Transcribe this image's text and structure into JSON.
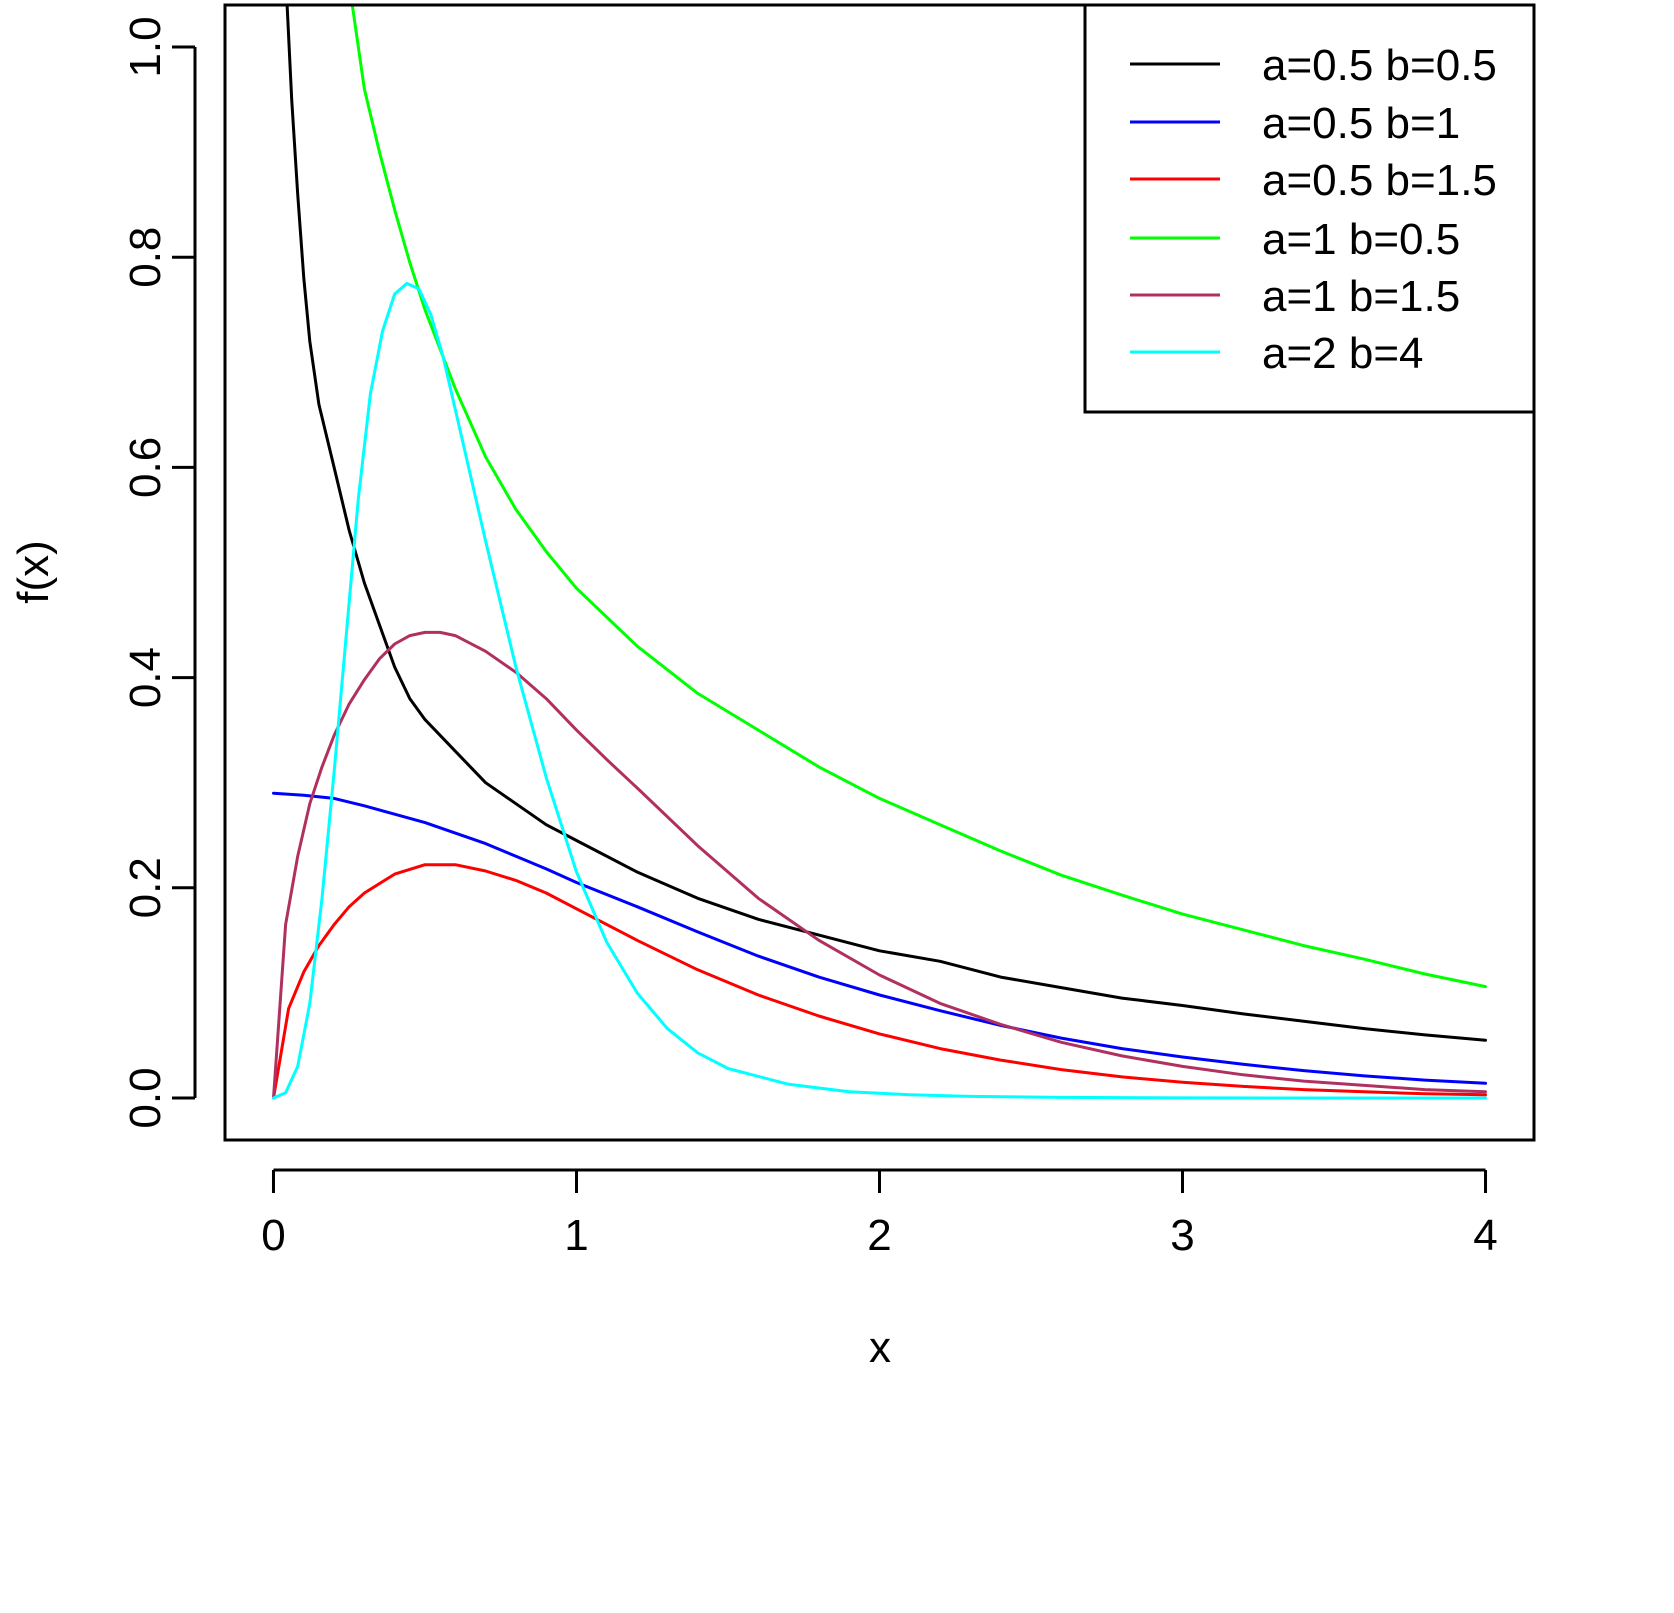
{
  "chart_data": {
    "type": "line",
    "title": "",
    "xlabel": "x",
    "ylabel": "f(x)",
    "xlim": [
      -0.16,
      4.16
    ],
    "ylim": [
      -0.04,
      1.04
    ],
    "xticks": [
      0,
      1,
      2,
      3,
      4
    ],
    "xtick_labels": [
      "0",
      "1",
      "2",
      "3",
      "4"
    ],
    "yticks": [
      0,
      0.2,
      0.4,
      0.6,
      0.8,
      1.0
    ],
    "ytick_labels": [
      "0.0",
      "0.2",
      "0.4",
      "0.6",
      "0.8",
      "1.0"
    ],
    "grid": false,
    "legend_position": "top-right",
    "x": [
      0,
      0.1,
      0.2,
      0.3,
      0.4,
      0.5,
      0.6,
      0.7,
      0.8,
      0.9,
      1.0,
      1.2,
      1.4,
      1.6,
      1.8,
      2.0,
      2.2,
      2.4,
      2.6,
      2.8,
      3.0,
      3.2,
      3.4,
      3.6,
      3.8,
      4.0
    ],
    "series": [
      {
        "name": "a=0.5 b=0.5",
        "color": "#000000",
        "x": [
          0.045,
          0.06,
          0.08,
          0.1,
          0.12,
          0.15,
          0.2,
          0.25,
          0.3,
          0.35,
          0.4,
          0.45,
          0.5,
          0.6,
          0.7,
          0.8,
          0.9,
          1.0,
          1.2,
          1.4,
          1.6,
          1.8,
          2.0,
          2.2,
          2.4,
          2.6,
          2.8,
          3.0,
          3.2,
          3.4,
          3.6,
          3.8,
          4.0
        ],
        "values": [
          1.04,
          0.95,
          0.86,
          0.78,
          0.72,
          0.66,
          0.6,
          0.54,
          0.49,
          0.45,
          0.41,
          0.38,
          0.36,
          0.33,
          0.3,
          0.28,
          0.26,
          0.245,
          0.215,
          0.19,
          0.17,
          0.155,
          0.14,
          0.13,
          0.115,
          0.105,
          0.095,
          0.088,
          0.08,
          0.073,
          0.066,
          0.06,
          0.055
        ]
      },
      {
        "name": "a=0.5 b=1",
        "color": "#0000ff",
        "x": [
          0,
          0.1,
          0.2,
          0.3,
          0.4,
          0.5,
          0.6,
          0.7,
          0.8,
          0.9,
          1.0,
          1.2,
          1.4,
          1.6,
          1.8,
          2.0,
          2.2,
          2.4,
          2.6,
          2.8,
          3.0,
          3.2,
          3.4,
          3.6,
          3.8,
          4.0
        ],
        "values": [
          0.29,
          0.288,
          0.285,
          0.278,
          0.27,
          0.262,
          0.252,
          0.242,
          0.23,
          0.218,
          0.205,
          0.182,
          0.158,
          0.135,
          0.115,
          0.098,
          0.083,
          0.069,
          0.057,
          0.047,
          0.039,
          0.032,
          0.026,
          0.021,
          0.017,
          0.014
        ]
      },
      {
        "name": "a=0.5 b=1.5",
        "color": "#ff0000",
        "x": [
          0,
          0.05,
          0.1,
          0.15,
          0.2,
          0.25,
          0.3,
          0.4,
          0.5,
          0.6,
          0.7,
          0.8,
          0.9,
          1.0,
          1.2,
          1.4,
          1.6,
          1.8,
          2.0,
          2.2,
          2.4,
          2.6,
          2.8,
          3.0,
          3.2,
          3.4,
          3.6,
          3.8,
          4.0
        ],
        "values": [
          0.0,
          0.085,
          0.12,
          0.145,
          0.165,
          0.182,
          0.195,
          0.213,
          0.222,
          0.222,
          0.216,
          0.207,
          0.195,
          0.18,
          0.15,
          0.122,
          0.098,
          0.078,
          0.061,
          0.047,
          0.036,
          0.027,
          0.02,
          0.015,
          0.011,
          0.008,
          0.006,
          0.004,
          0.003
        ]
      },
      {
        "name": "a=1 b=0.5",
        "color": "#00ff00",
        "x": [
          0.26,
          0.3,
          0.35,
          0.4,
          0.45,
          0.5,
          0.6,
          0.7,
          0.8,
          0.9,
          1.0,
          1.2,
          1.4,
          1.6,
          1.8,
          2.0,
          2.2,
          2.4,
          2.6,
          2.8,
          3.0,
          3.2,
          3.4,
          3.6,
          3.8,
          4.0
        ],
        "values": [
          1.04,
          0.96,
          0.9,
          0.845,
          0.795,
          0.75,
          0.675,
          0.61,
          0.56,
          0.52,
          0.485,
          0.43,
          0.385,
          0.35,
          0.315,
          0.285,
          0.26,
          0.235,
          0.212,
          0.193,
          0.175,
          0.16,
          0.145,
          0.132,
          0.118,
          0.106
        ]
      },
      {
        "name": "a=1 b=1.5",
        "color": "#b03060",
        "x": [
          0,
          0.04,
          0.08,
          0.12,
          0.16,
          0.2,
          0.25,
          0.3,
          0.35,
          0.4,
          0.45,
          0.5,
          0.55,
          0.6,
          0.7,
          0.8,
          0.9,
          1.0,
          1.1,
          1.2,
          1.4,
          1.6,
          1.8,
          2.0,
          2.2,
          2.4,
          2.6,
          2.8,
          3.0,
          3.2,
          3.4,
          3.6,
          3.8,
          4.0
        ],
        "values": [
          0.0,
          0.165,
          0.23,
          0.28,
          0.315,
          0.345,
          0.375,
          0.398,
          0.418,
          0.432,
          0.44,
          0.443,
          0.443,
          0.44,
          0.425,
          0.405,
          0.38,
          0.35,
          0.322,
          0.295,
          0.24,
          0.19,
          0.15,
          0.117,
          0.09,
          0.07,
          0.053,
          0.04,
          0.03,
          0.022,
          0.016,
          0.012,
          0.008,
          0.006
        ]
      },
      {
        "name": "a=2 b=4",
        "color": "#00ffff",
        "x": [
          0,
          0.04,
          0.08,
          0.12,
          0.16,
          0.2,
          0.24,
          0.28,
          0.32,
          0.36,
          0.4,
          0.44,
          0.48,
          0.52,
          0.56,
          0.6,
          0.7,
          0.8,
          0.9,
          1.0,
          1.1,
          1.2,
          1.3,
          1.4,
          1.5,
          1.7,
          1.9,
          2.1,
          2.3,
          2.6,
          3.0,
          3.5,
          4.0
        ],
        "values": [
          0.0,
          0.005,
          0.03,
          0.09,
          0.19,
          0.31,
          0.44,
          0.57,
          0.67,
          0.73,
          0.765,
          0.775,
          0.77,
          0.745,
          0.705,
          0.655,
          0.53,
          0.41,
          0.305,
          0.215,
          0.148,
          0.1,
          0.066,
          0.043,
          0.028,
          0.013,
          0.006,
          0.003,
          0.0015,
          0.0005,
          0.0001,
          0.0,
          0.0
        ]
      }
    ]
  }
}
